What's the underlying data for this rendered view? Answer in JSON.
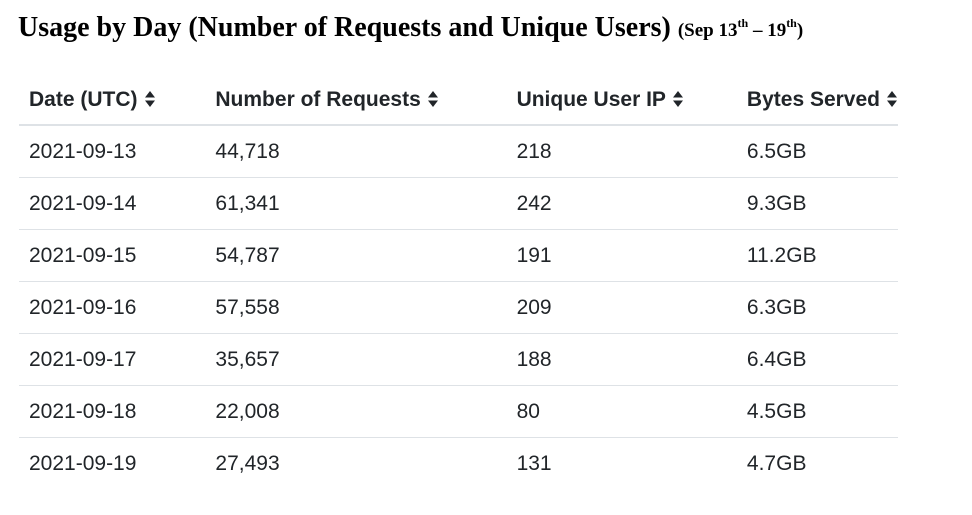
{
  "heading": {
    "main": "Usage by Day (Number of Requests and Unique Users)",
    "range_prefix": "(Sep 13",
    "range_sup1": "th",
    "range_dash": " – 19",
    "range_sup2": "th",
    "range_suffix": ")"
  },
  "table": {
    "columns": [
      {
        "label": "Date (UTC)",
        "sort_icon": "sort-icon"
      },
      {
        "label": "Number of Requests",
        "sort_icon": "sort-icon"
      },
      {
        "label": "Unique User IP",
        "sort_icon": "sort-icon"
      },
      {
        "label": "Bytes Served",
        "sort_icon": "sort-icon"
      }
    ],
    "rows": [
      [
        "2021-09-13",
        "44,718",
        "218",
        "6.5GB"
      ],
      [
        "2021-09-14",
        "61,341",
        "242",
        "9.3GB"
      ],
      [
        "2021-09-15",
        "54,787",
        "191",
        "11.2GB"
      ],
      [
        "2021-09-16",
        "57,558",
        "209",
        "6.3GB"
      ],
      [
        "2021-09-17",
        "35,657",
        "188",
        "6.4GB"
      ],
      [
        "2021-09-18",
        "22,008",
        "80",
        "4.5GB"
      ],
      [
        "2021-09-19",
        "27,493",
        "131",
        "4.7GB"
      ]
    ]
  },
  "colors": {
    "text": "#212529",
    "divider": "#dee2e6"
  }
}
